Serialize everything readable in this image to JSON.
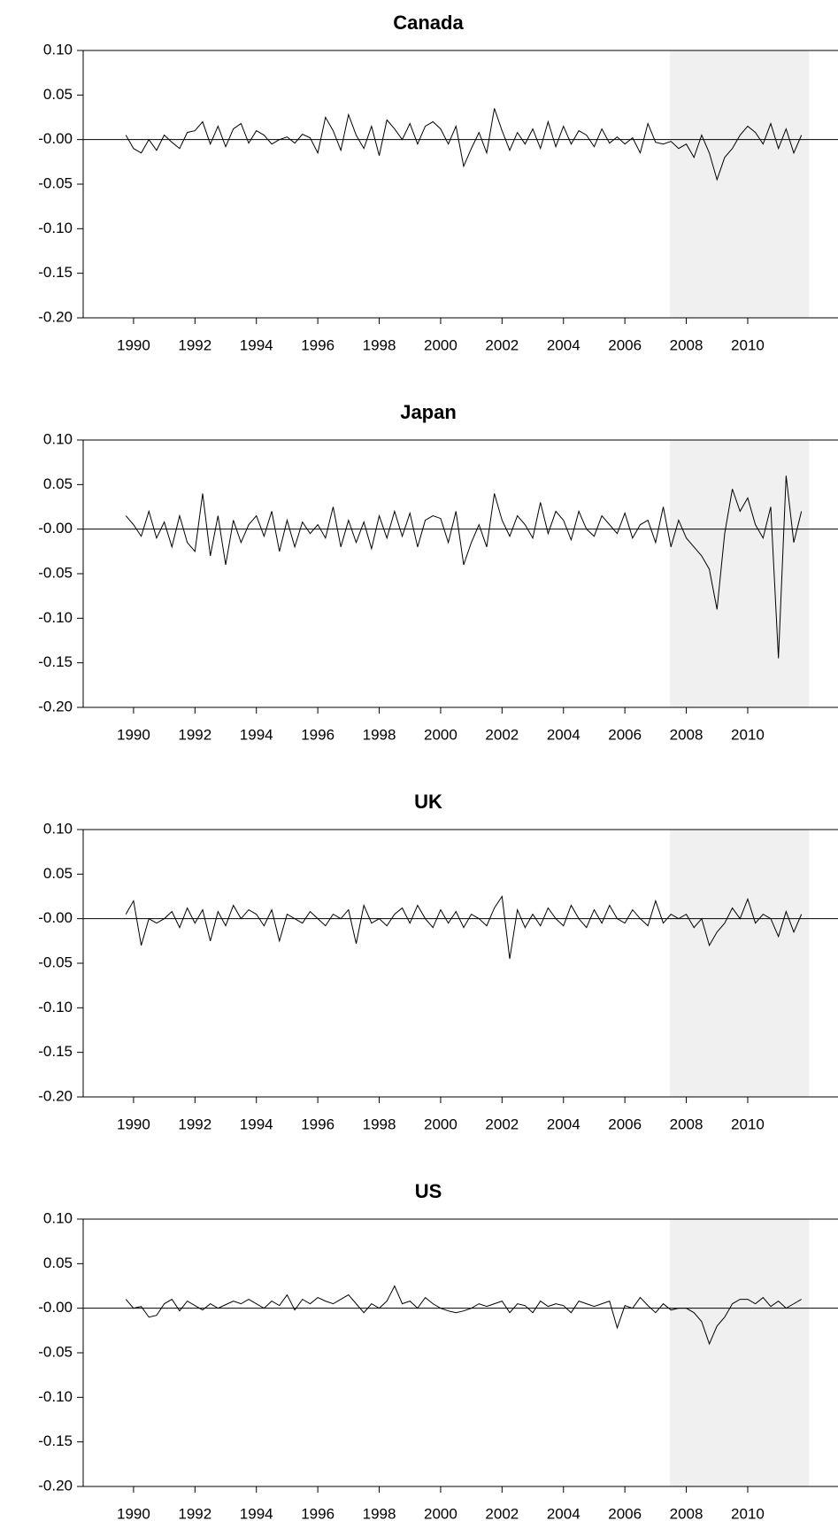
{
  "chart_data": [
    {
      "type": "line",
      "title": "Canada",
      "x": [
        1989.75,
        1990,
        1990.25,
        1990.5,
        1990.75,
        1991,
        1991.25,
        1991.5,
        1991.75,
        1992,
        1992.25,
        1992.5,
        1992.75,
        1993,
        1993.25,
        1993.5,
        1993.75,
        1994,
        1994.25,
        1994.5,
        1994.75,
        1995,
        1995.25,
        1995.5,
        1995.75,
        1996,
        1996.25,
        1996.5,
        1996.75,
        1997,
        1997.25,
        1997.5,
        1997.75,
        1998,
        1998.25,
        1998.5,
        1998.75,
        1999,
        1999.25,
        1999.5,
        1999.75,
        2000,
        2000.25,
        2000.5,
        2000.75,
        2001,
        2001.25,
        2001.5,
        2001.75,
        2002,
        2002.25,
        2002.5,
        2002.75,
        2003,
        2003.25,
        2003.5,
        2003.75,
        2004,
        2004.25,
        2004.5,
        2004.75,
        2005,
        2005.25,
        2005.5,
        2005.75,
        2006,
        2006.25,
        2006.5,
        2006.75,
        2007,
        2007.25,
        2007.5,
        2007.75,
        2008,
        2008.25,
        2008.5,
        2008.75,
        2009,
        2009.25,
        2009.5,
        2009.75,
        2010,
        2010.25,
        2010.5,
        2010.75,
        2011,
        2011.25,
        2011.5,
        2011.75
      ],
      "values": [
        0.005,
        -0.01,
        -0.015,
        0.0,
        -0.012,
        0.005,
        -0.003,
        -0.01,
        0.008,
        0.01,
        0.02,
        -0.005,
        0.015,
        -0.008,
        0.012,
        0.018,
        -0.004,
        0.01,
        0.005,
        -0.005,
        0.0,
        0.003,
        -0.004,
        0.006,
        0.002,
        -0.015,
        0.025,
        0.01,
        -0.012,
        0.028,
        0.005,
        -0.01,
        0.015,
        -0.018,
        0.022,
        0.012,
        0.0,
        0.018,
        -0.005,
        0.015,
        0.02,
        0.012,
        -0.005,
        0.015,
        -0.03,
        -0.01,
        0.008,
        -0.015,
        0.035,
        0.01,
        -0.012,
        0.008,
        -0.005,
        0.012,
        -0.01,
        0.02,
        -0.008,
        0.015,
        -0.005,
        0.01,
        0.005,
        -0.008,
        0.012,
        -0.004,
        0.003,
        -0.005,
        0.002,
        -0.015,
        0.018,
        -0.003,
        -0.005,
        -0.002,
        -0.01,
        -0.005,
        -0.02,
        0.005,
        -0.015,
        -0.045,
        -0.02,
        -0.01,
        0.005,
        0.015,
        0.008,
        -0.005,
        0.018,
        -0.01,
        0.012,
        -0.015,
        0.005
      ],
      "color": "#000000",
      "xlim": [
        1988.36,
        2012.94
      ],
      "xticks": [
        1990,
        1992,
        1994,
        1996,
        1998,
        2000,
        2002,
        2004,
        2006,
        2008,
        2010
      ],
      "ylim": [
        -0.2,
        0.1
      ],
      "yticks": [
        {
          "value": 0.1,
          "label": "0.10"
        },
        {
          "value": 0.05,
          "label": "0.05"
        },
        {
          "value": 0,
          "label": "-0.00"
        },
        {
          "value": -0.05,
          "label": "-0.05"
        },
        {
          "value": -0.1,
          "label": "-0.10"
        },
        {
          "value": -0.15,
          "label": "-0.15"
        },
        {
          "value": -0.2,
          "label": "-0.20"
        }
      ],
      "shade": [
        2007.47,
        2012.0
      ],
      "shade_color": "#f0f0f0",
      "zero_line": true
    },
    {
      "type": "line",
      "title": "Japan",
      "x": [
        1989.75,
        1990,
        1990.25,
        1990.5,
        1990.75,
        1991,
        1991.25,
        1991.5,
        1991.75,
        1992,
        1992.25,
        1992.5,
        1992.75,
        1993,
        1993.25,
        1993.5,
        1993.75,
        1994,
        1994.25,
        1994.5,
        1994.75,
        1995,
        1995.25,
        1995.5,
        1995.75,
        1996,
        1996.25,
        1996.5,
        1996.75,
        1997,
        1997.25,
        1997.5,
        1997.75,
        1998,
        1998.25,
        1998.5,
        1998.75,
        1999,
        1999.25,
        1999.5,
        1999.75,
        2000,
        2000.25,
        2000.5,
        2000.75,
        2001,
        2001.25,
        2001.5,
        2001.75,
        2002,
        2002.25,
        2002.5,
        2002.75,
        2003,
        2003.25,
        2003.5,
        2003.75,
        2004,
        2004.25,
        2004.5,
        2004.75,
        2005,
        2005.25,
        2005.5,
        2005.75,
        2006,
        2006.25,
        2006.5,
        2006.75,
        2007,
        2007.25,
        2007.5,
        2007.75,
        2008,
        2008.25,
        2008.5,
        2008.75,
        2009,
        2009.25,
        2009.5,
        2009.75,
        2010,
        2010.25,
        2010.5,
        2010.75,
        2011,
        2011.25,
        2011.5,
        2011.75
      ],
      "values": [
        0.015,
        0.005,
        -0.008,
        0.02,
        -0.01,
        0.008,
        -0.02,
        0.015,
        -0.015,
        -0.025,
        0.04,
        -0.03,
        0.015,
        -0.04,
        0.01,
        -0.015,
        0.005,
        0.015,
        -0.008,
        0.02,
        -0.025,
        0.01,
        -0.02,
        0.008,
        -0.005,
        0.005,
        -0.01,
        0.025,
        -0.02,
        0.01,
        -0.015,
        0.008,
        -0.022,
        0.015,
        -0.01,
        0.02,
        -0.008,
        0.018,
        -0.02,
        0.01,
        0.015,
        0.012,
        -0.015,
        0.02,
        -0.04,
        -0.015,
        0.005,
        -0.02,
        0.04,
        0.01,
        -0.008,
        0.015,
        0.005,
        -0.01,
        0.03,
        -0.005,
        0.02,
        0.01,
        -0.012,
        0.02,
        0.0,
        -0.008,
        0.015,
        0.005,
        -0.005,
        0.018,
        -0.01,
        0.005,
        0.01,
        -0.015,
        0.025,
        -0.02,
        0.01,
        -0.01,
        -0.02,
        -0.03,
        -0.045,
        -0.09,
        -0.005,
        0.045,
        0.02,
        0.035,
        0.005,
        -0.01,
        0.025,
        -0.145,
        0.06,
        -0.015,
        0.02
      ],
      "color": "#000000",
      "xlim": [
        1988.36,
        2012.94
      ],
      "xticks": [
        1990,
        1992,
        1994,
        1996,
        1998,
        2000,
        2002,
        2004,
        2006,
        2008,
        2010
      ],
      "ylim": [
        -0.2,
        0.1
      ],
      "yticks": [
        {
          "value": 0.1,
          "label": "0.10"
        },
        {
          "value": 0.05,
          "label": "0.05"
        },
        {
          "value": 0,
          "label": "-0.00"
        },
        {
          "value": -0.05,
          "label": "-0.05"
        },
        {
          "value": -0.1,
          "label": "-0.10"
        },
        {
          "value": -0.15,
          "label": "-0.15"
        },
        {
          "value": -0.2,
          "label": "-0.20"
        }
      ],
      "shade": [
        2007.47,
        2012.0
      ],
      "shade_color": "#f0f0f0",
      "zero_line": true
    },
    {
      "type": "line",
      "title": "UK",
      "x": [
        1989.75,
        1990,
        1990.25,
        1990.5,
        1990.75,
        1991,
        1991.25,
        1991.5,
        1991.75,
        1992,
        1992.25,
        1992.5,
        1992.75,
        1993,
        1993.25,
        1993.5,
        1993.75,
        1994,
        1994.25,
        1994.5,
        1994.75,
        1995,
        1995.25,
        1995.5,
        1995.75,
        1996,
        1996.25,
        1996.5,
        1996.75,
        1997,
        1997.25,
        1997.5,
        1997.75,
        1998,
        1998.25,
        1998.5,
        1998.75,
        1999,
        1999.25,
        1999.5,
        1999.75,
        2000,
        2000.25,
        2000.5,
        2000.75,
        2001,
        2001.25,
        2001.5,
        2001.75,
        2002,
        2002.25,
        2002.5,
        2002.75,
        2003,
        2003.25,
        2003.5,
        2003.75,
        2004,
        2004.25,
        2004.5,
        2004.75,
        2005,
        2005.25,
        2005.5,
        2005.75,
        2006,
        2006.25,
        2006.5,
        2006.75,
        2007,
        2007.25,
        2007.5,
        2007.75,
        2008,
        2008.25,
        2008.5,
        2008.75,
        2009,
        2009.25,
        2009.5,
        2009.75,
        2010,
        2010.25,
        2010.5,
        2010.75,
        2011,
        2011.25,
        2011.5,
        2011.75
      ],
      "values": [
        0.005,
        0.02,
        -0.03,
        0.0,
        -0.005,
        0.0,
        0.008,
        -0.01,
        0.012,
        -0.005,
        0.01,
        -0.025,
        0.008,
        -0.008,
        0.015,
        0.0,
        0.01,
        0.005,
        -0.008,
        0.01,
        -0.025,
        0.005,
        0.0,
        -0.005,
        0.008,
        0.0,
        -0.008,
        0.005,
        0.0,
        0.01,
        -0.028,
        0.015,
        -0.005,
        0.0,
        -0.008,
        0.005,
        0.012,
        -0.005,
        0.015,
        0.0,
        -0.01,
        0.01,
        -0.005,
        0.008,
        -0.01,
        0.005,
        0.0,
        -0.008,
        0.012,
        0.025,
        -0.045,
        0.01,
        -0.01,
        0.005,
        -0.008,
        0.012,
        0.0,
        -0.008,
        0.015,
        0.0,
        -0.01,
        0.01,
        -0.005,
        0.015,
        0.0,
        -0.005,
        0.01,
        0.0,
        -0.008,
        0.02,
        -0.005,
        0.005,
        0.0,
        0.005,
        -0.01,
        0.0,
        -0.03,
        -0.015,
        -0.005,
        0.012,
        0.0,
        0.022,
        -0.005,
        0.005,
        0.0,
        -0.02,
        0.008,
        -0.015,
        0.005
      ],
      "color": "#000000",
      "xlim": [
        1988.36,
        2012.94
      ],
      "xticks": [
        1990,
        1992,
        1994,
        1996,
        1998,
        2000,
        2002,
        2004,
        2006,
        2008,
        2010
      ],
      "ylim": [
        -0.2,
        0.1
      ],
      "yticks": [
        {
          "value": 0.1,
          "label": "0.10"
        },
        {
          "value": 0.05,
          "label": "0.05"
        },
        {
          "value": 0,
          "label": "-0.00"
        },
        {
          "value": -0.05,
          "label": "-0.05"
        },
        {
          "value": -0.1,
          "label": "-0.10"
        },
        {
          "value": -0.15,
          "label": "-0.15"
        },
        {
          "value": -0.2,
          "label": "-0.20"
        }
      ],
      "shade": [
        2007.47,
        2012.0
      ],
      "shade_color": "#f0f0f0",
      "zero_line": true
    },
    {
      "type": "line",
      "title": "US",
      "x": [
        1989.75,
        1990,
        1990.25,
        1990.5,
        1990.75,
        1991,
        1991.25,
        1991.5,
        1991.75,
        1992,
        1992.25,
        1992.5,
        1992.75,
        1993,
        1993.25,
        1993.5,
        1993.75,
        1994,
        1994.25,
        1994.5,
        1994.75,
        1995,
        1995.25,
        1995.5,
        1995.75,
        1996,
        1996.25,
        1996.5,
        1996.75,
        1997,
        1997.25,
        1997.5,
        1997.75,
        1998,
        1998.25,
        1998.5,
        1998.75,
        1999,
        1999.25,
        1999.5,
        1999.75,
        2000,
        2000.25,
        2000.5,
        2000.75,
        2001,
        2001.25,
        2001.5,
        2001.75,
        2002,
        2002.25,
        2002.5,
        2002.75,
        2003,
        2003.25,
        2003.5,
        2003.75,
        2004,
        2004.25,
        2004.5,
        2004.75,
        2005,
        2005.25,
        2005.5,
        2005.75,
        2006,
        2006.25,
        2006.5,
        2006.75,
        2007,
        2007.25,
        2007.5,
        2007.75,
        2008,
        2008.25,
        2008.5,
        2008.75,
        2009,
        2009.25,
        2009.5,
        2009.75,
        2010,
        2010.25,
        2010.5,
        2010.75,
        2011,
        2011.25,
        2011.5,
        2011.75
      ],
      "values": [
        0.01,
        0.0,
        0.002,
        -0.01,
        -0.008,
        0.005,
        0.01,
        -0.003,
        0.008,
        0.003,
        -0.002,
        0.005,
        0.0,
        0.004,
        0.008,
        0.005,
        0.01,
        0.005,
        0.0,
        0.008,
        0.003,
        0.015,
        -0.002,
        0.01,
        0.005,
        0.012,
        0.008,
        0.005,
        0.01,
        0.015,
        0.005,
        -0.005,
        0.005,
        0.0,
        0.008,
        0.025,
        0.005,
        0.008,
        0.0,
        0.012,
        0.005,
        0.0,
        -0.003,
        -0.005,
        -0.003,
        0.0,
        0.005,
        0.002,
        0.005,
        0.008,
        -0.005,
        0.005,
        0.003,
        -0.005,
        0.008,
        0.002,
        0.005,
        0.003,
        -0.005,
        0.008,
        0.005,
        0.002,
        0.005,
        0.008,
        -0.022,
        0.003,
        0.0,
        0.012,
        0.003,
        -0.005,
        0.005,
        -0.002,
        0.0,
        0.0,
        -0.005,
        -0.015,
        -0.04,
        -0.02,
        -0.01,
        0.005,
        0.01,
        0.01,
        0.005,
        0.012,
        0.002,
        0.008,
        0.0,
        0.005,
        0.01
      ],
      "color": "#000000",
      "xlim": [
        1988.36,
        2012.94
      ],
      "xticks": [
        1990,
        1992,
        1994,
        1996,
        1998,
        2000,
        2002,
        2004,
        2006,
        2008,
        2010
      ],
      "ylim": [
        -0.2,
        0.1
      ],
      "yticks": [
        {
          "value": 0.1,
          "label": "0.10"
        },
        {
          "value": 0.05,
          "label": "0.05"
        },
        {
          "value": 0,
          "label": "-0.00"
        },
        {
          "value": -0.05,
          "label": "-0.05"
        },
        {
          "value": -0.1,
          "label": "-0.10"
        },
        {
          "value": -0.15,
          "label": "-0.15"
        },
        {
          "value": -0.2,
          "label": "-0.20"
        }
      ],
      "shade": [
        2007.47,
        2012.0
      ],
      "shade_color": "#f0f0f0",
      "zero_line": true
    }
  ]
}
